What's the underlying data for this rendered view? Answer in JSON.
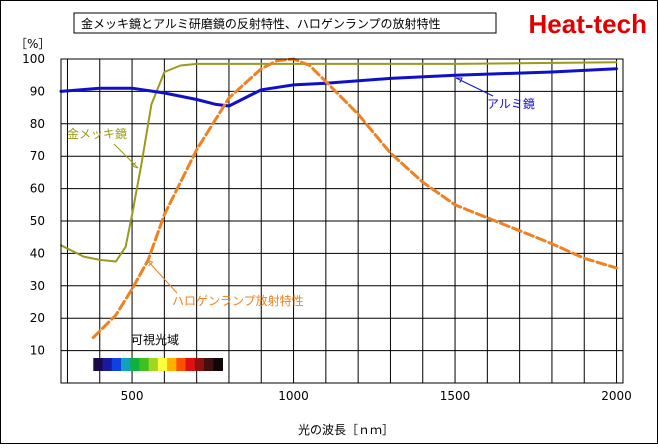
{
  "chart_data": {
    "type": "line",
    "title": "金メッキ鏡とアルミ研磨鏡の反射特性、ハロゲンランプの放射特性",
    "brand": "Heat-tech",
    "ylabel": "［%］",
    "xlabel": "光の波長［ｎｍ］",
    "xlim": [
      280,
      2020
    ],
    "ylim": [
      0,
      100
    ],
    "xticks": [
      500,
      1000,
      1500,
      2000
    ],
    "yticks": [
      10,
      20,
      30,
      40,
      50,
      60,
      70,
      80,
      90,
      100
    ],
    "grid": true,
    "visible_band_label": "可視光域",
    "visible_band": [
      380,
      780
    ],
    "visible_band_colors": [
      "#1a0a4a",
      "#1a1aa0",
      "#1040e0",
      "#10a0c0",
      "#10b040",
      "#40c020",
      "#a0d820",
      "#ffff40",
      "#ffb000",
      "#ff5000",
      "#e01010",
      "#901010",
      "#401010",
      "#100808"
    ],
    "colors": {
      "gold": "#9a9a1c",
      "aluminum": "#1010c8",
      "halogen": "#f08020"
    },
    "series": [
      {
        "key": "gold",
        "name": "金メッキ鏡",
        "x": [
          280,
          350,
          400,
          450,
          480,
          500,
          530,
          560,
          600,
          650,
          700,
          750,
          800,
          1000,
          1500,
          2000
        ],
        "values": [
          42.5,
          39,
          38,
          37.5,
          42,
          52,
          68,
          86,
          96,
          98,
          98.5,
          98.5,
          98.5,
          98.5,
          98.5,
          99
        ]
      },
      {
        "key": "aluminum",
        "name": "アルミ鏡",
        "x": [
          280,
          400,
          500,
          600,
          700,
          760,
          800,
          850,
          900,
          1000,
          1100,
          1300,
          1500,
          1800,
          2000
        ],
        "values": [
          90,
          91,
          91,
          89.5,
          87.5,
          86,
          85.5,
          88,
          90.5,
          92,
          92.5,
          94,
          95,
          96,
          97
        ]
      },
      {
        "key": "halogen",
        "name": "ハロゲンランプ放射特性",
        "x": [
          380,
          450,
          500,
          550,
          600,
          700,
          800,
          900,
          950,
          1000,
          1050,
          1100,
          1200,
          1300,
          1400,
          1500,
          1600,
          1700,
          1800,
          1900,
          2000
        ],
        "values": [
          14,
          21,
          29,
          38,
          52,
          72,
          88,
          97,
          99.5,
          100,
          98,
          93,
          83,
          71,
          62,
          55,
          51,
          47,
          43,
          38.5,
          35.5
        ]
      }
    ],
    "annotations": [
      {
        "key": "gold",
        "text": "金メッキ鏡"
      },
      {
        "key": "aluminum",
        "text": "アルミ鏡"
      },
      {
        "key": "halogen",
        "text": "ハロゲンランプ放射特性"
      }
    ]
  }
}
